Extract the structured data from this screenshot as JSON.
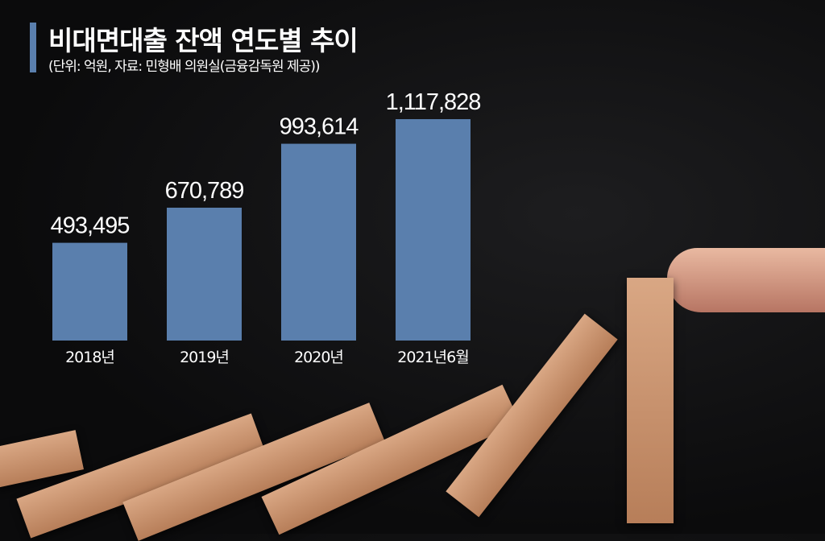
{
  "title": "비대면대출 잔액 연도별 추이",
  "subtitle": "(단위: 억원, 자료: 민형배 의원실(금융감독원 제공))",
  "colors": {
    "bar": "#5a7fad",
    "accent": "#5a7fad",
    "background": "#0b0b0c"
  },
  "chart_data": {
    "type": "bar",
    "title": "비대면대출 잔액 연도별 추이",
    "unit": "억원",
    "categories": [
      "2018년",
      "2019년",
      "2020년",
      "2021년6월"
    ],
    "values": [
      493495,
      670789,
      993614,
      1117828
    ],
    "labels": [
      "493,495",
      "670,789",
      "993,614",
      "1,117,828"
    ],
    "grid": false
  }
}
